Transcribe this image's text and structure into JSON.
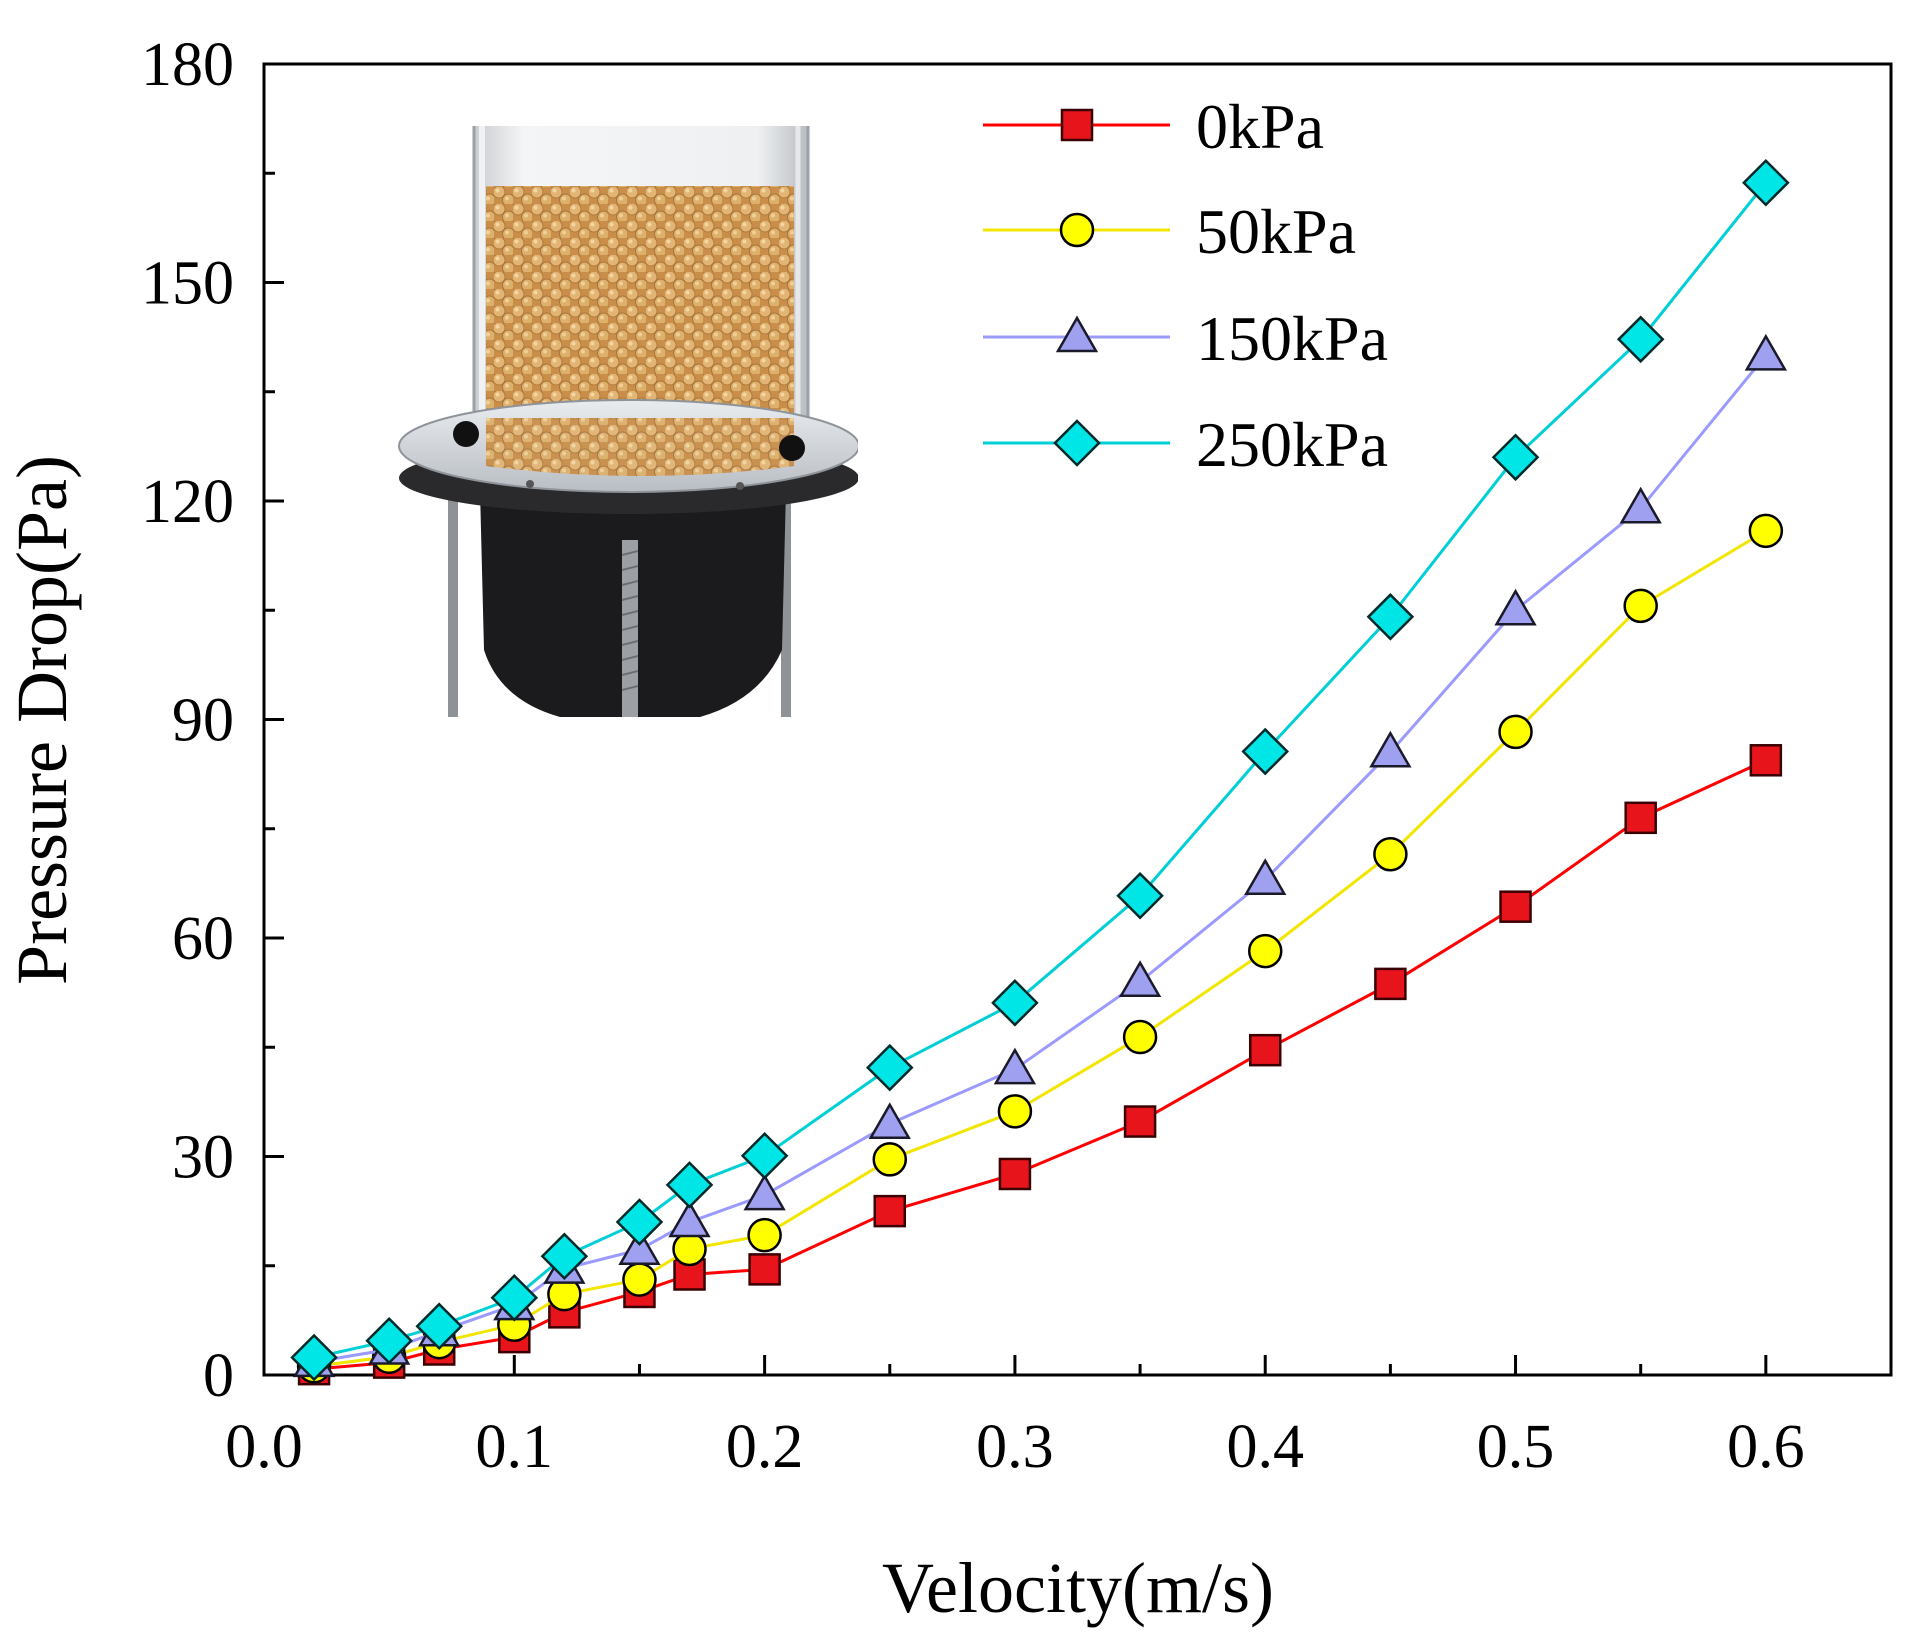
{
  "chart_data": {
    "type": "line",
    "title": "",
    "xlabel": "Velocity(m/s)",
    "ylabel": "Pressure Drop(Pa)",
    "xlim": [
      0,
      0.65
    ],
    "ylim": [
      0,
      180
    ],
    "xticks": [
      0,
      0.1,
      0.2,
      0.3,
      0.4,
      0.5,
      0.6
    ],
    "xtick_labels": [
      "0.0",
      "0.1",
      "0.2",
      "0.3",
      "0.4",
      "0.5",
      "0.6"
    ],
    "yticks": [
      0,
      30,
      60,
      90,
      120,
      150,
      180
    ],
    "ytick_labels": [
      "0",
      "30",
      "60",
      "90",
      "120",
      "150",
      "180"
    ],
    "grid": false,
    "legend": "top-center",
    "x": [
      0.02,
      0.05,
      0.07,
      0.1,
      0.12,
      0.15,
      0.17,
      0.2,
      0.25,
      0.3,
      0.35,
      0.4,
      0.45,
      0.5,
      0.55,
      0.6
    ],
    "series": [
      {
        "name": "0kPa",
        "marker": "square",
        "line_color": "#ff0000",
        "marker_color": "#e8141c",
        "values": [
          0.8,
          1.7,
          3.5,
          5.2,
          8.6,
          11.4,
          13.8,
          14.5,
          22.5,
          27.6,
          34.8,
          44.6,
          53.7,
          64.3,
          76.5,
          84.4
        ]
      },
      {
        "name": "50kPa",
        "marker": "circle",
        "line_color": "#f2e600",
        "marker_color": "#ffff00",
        "values": [
          1.2,
          2.5,
          4.5,
          6.9,
          11.1,
          13.1,
          17.3,
          19.2,
          29.6,
          36.2,
          46.4,
          58.2,
          71.5,
          88.3,
          105.6,
          115.9
        ]
      },
      {
        "name": "150kPa",
        "marker": "triangle",
        "line_color": "#9a9aff",
        "marker_color": "#a0a0f0",
        "values": [
          1.8,
          3.5,
          6.0,
          9.6,
          14.6,
          17.2,
          21.0,
          24.7,
          34.5,
          42.0,
          54.0,
          68.0,
          85.5,
          105.0,
          119.0,
          140.0
        ]
      },
      {
        "name": "250kPa",
        "marker": "diamond",
        "line_color": "#00cfd6",
        "marker_color": "#00e5e5",
        "values": [
          2.4,
          4.7,
          6.7,
          10.6,
          16.3,
          21.0,
          26.1,
          30.1,
          42.2,
          51.1,
          65.8,
          85.6,
          104.1,
          126.0,
          142.2,
          163.7
        ]
      }
    ],
    "inset": "photo-packed-bed-column"
  }
}
